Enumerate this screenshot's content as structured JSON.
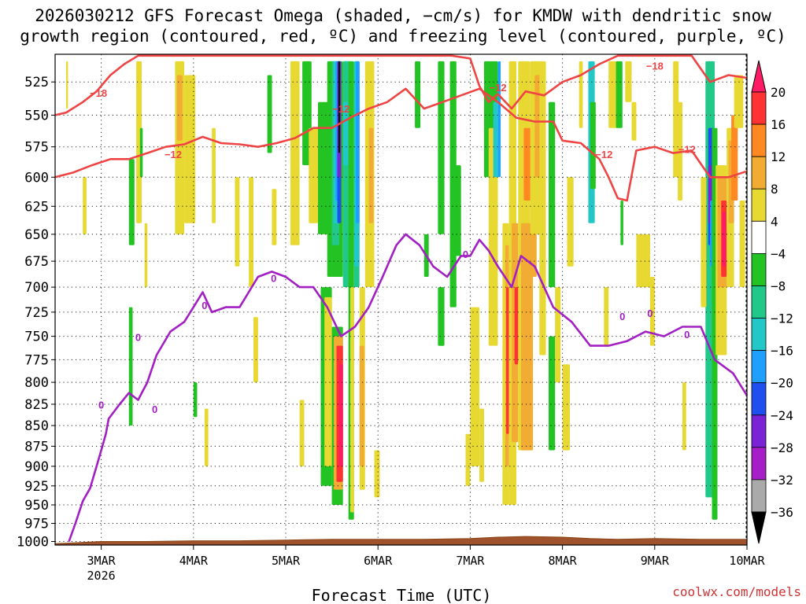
{
  "chart_data": {
    "type": "heatmap",
    "title_lines": [
      "2026030212 GFS Forecast Omega (shaded, −cm/s) for KMDW with dendritic snow",
      "growth region (contoured, red, ºC) and freezing level (contoured, purple, ºC)"
    ],
    "xlabel": "Forecast Time (UTC)",
    "credit": "coolwx.com/models",
    "x_ticks": [
      {
        "label": "3MAR",
        "sub": "2026",
        "day": 3
      },
      {
        "label": "4MAR",
        "sub": "",
        "day": 4
      },
      {
        "label": "5MAR",
        "sub": "",
        "day": 5
      },
      {
        "label": "6MAR",
        "sub": "",
        "day": 6
      },
      {
        "label": "7MAR",
        "sub": "",
        "day": 7
      },
      {
        "label": "8MAR",
        "sub": "",
        "day": 8
      },
      {
        "label": "9MAR",
        "sub": "",
        "day": 9
      },
      {
        "label": "10MAR",
        "sub": "",
        "day": 10
      }
    ],
    "xlim_days": [
      2.5,
      10.0
    ],
    "y_ticks": [
      525,
      550,
      575,
      600,
      625,
      650,
      675,
      700,
      725,
      750,
      775,
      800,
      825,
      850,
      875,
      900,
      925,
      950,
      975,
      1000
    ],
    "ylim_hpa": [
      505,
      1005
    ],
    "y_scale": "log-pressure",
    "grid": "dotted",
    "colorbar": {
      "labels": [
        "20",
        "16",
        "12",
        "8",
        "4",
        "−4",
        "−8",
        "−12",
        "−16",
        "−20",
        "−24",
        "−28",
        "−32",
        "−36"
      ],
      "colors": [
        "#ff1a66",
        "#ff3333",
        "#ff8822",
        "#f2ab33",
        "#e8d832",
        "#ffffff",
        "#22c322",
        "#22c88a",
        "#22c8c8",
        "#1f9fff",
        "#1f4fee",
        "#7a22d6",
        "#a61ec8",
        "#aaaaaa"
      ]
    },
    "contours": {
      "dgz_red": {
        "color": "#ee4444",
        "label": "−12 / −18",
        "labels": [
          "−18",
          "−12",
          "−12",
          "−12",
          "−12",
          "−12",
          "−18"
        ],
        "upper_boundary": {
          "x": [
            2.5,
            2.62,
            2.8,
            2.95,
            3.1,
            3.25,
            3.4,
            3.6,
            3.8,
            4.0,
            4.2,
            4.4,
            4.6,
            4.8,
            5.0,
            5.2,
            5.4,
            5.6,
            5.8,
            6.0,
            6.2,
            6.4,
            6.6,
            6.8,
            7.0,
            7.1,
            7.2,
            7.3,
            7.45,
            7.6,
            7.8,
            8.0,
            8.2,
            8.4,
            8.6,
            8.8,
            9.0,
            9.2,
            9.4,
            9.6,
            9.8,
            10.0
          ],
          "y_hpa": [
            550,
            548,
            540,
            532,
            520,
            512,
            506,
            506,
            506,
            506,
            506,
            506,
            506,
            506,
            506,
            506,
            506,
            506,
            506,
            506,
            506,
            506,
            506,
            506,
            508,
            528,
            540,
            534,
            545,
            532,
            535,
            525,
            520,
            512,
            506,
            506,
            506,
            506,
            506,
            525,
            520,
            522
          ]
        },
        "lower_boundary": {
          "x": [
            2.5,
            2.7,
            2.9,
            3.1,
            3.3,
            3.5,
            3.7,
            3.9,
            4.1,
            4.3,
            4.5,
            4.7,
            4.9,
            5.1,
            5.3,
            5.5,
            5.7,
            5.9,
            6.1,
            6.3,
            6.5,
            6.7,
            6.9,
            7.1,
            7.3,
            7.5,
            7.7,
            7.9,
            8.0,
            8.2,
            8.4,
            8.5,
            8.6,
            8.7,
            8.8,
            9.0,
            9.2,
            9.4,
            9.6,
            9.8,
            10.0
          ],
          "y_hpa": [
            600,
            596,
            590,
            585,
            585,
            580,
            575,
            573,
            567,
            572,
            573,
            575,
            572,
            568,
            560,
            560,
            552,
            545,
            540,
            530,
            545,
            540,
            535,
            530,
            540,
            552,
            555,
            555,
            570,
            572,
            585,
            600,
            618,
            620,
            578,
            575,
            580,
            578,
            600,
            600,
            595
          ]
        }
      },
      "freezing_level": {
        "color": "#a21fc4",
        "label": "0",
        "labels": [
          "0",
          "0",
          "0",
          "0",
          "0",
          "0",
          "0",
          "0",
          "0"
        ],
        "x": [
          2.65,
          2.72,
          2.8,
          2.88,
          2.95,
          3.0,
          3.05,
          3.08,
          3.2,
          3.3,
          3.4,
          3.5,
          3.6,
          3.75,
          3.9,
          4.0,
          4.1,
          4.2,
          4.35,
          4.5,
          4.7,
          4.85,
          5.0,
          5.15,
          5.3,
          5.45,
          5.6,
          5.75,
          5.9,
          6.05,
          6.2,
          6.3,
          6.45,
          6.6,
          6.75,
          6.9,
          7.0,
          7.1,
          7.2,
          7.3,
          7.45,
          7.55,
          7.7,
          7.9,
          8.1,
          8.3,
          8.5,
          8.7,
          8.9,
          9.1,
          9.3,
          9.5,
          9.65,
          9.85,
          10.0
        ],
        "y_hpa": [
          1000,
          975,
          945,
          928,
          900,
          880,
          860,
          842,
          825,
          812,
          820,
          800,
          770,
          745,
          735,
          720,
          705,
          725,
          720,
          720,
          690,
          685,
          690,
          700,
          700,
          720,
          750,
          740,
          720,
          690,
          660,
          650,
          660,
          680,
          690,
          670,
          670,
          655,
          665,
          680,
          700,
          670,
          680,
          720,
          735,
          760,
          760,
          755,
          745,
          750,
          740,
          740,
          775,
          790,
          815
        ]
      }
    }
  }
}
